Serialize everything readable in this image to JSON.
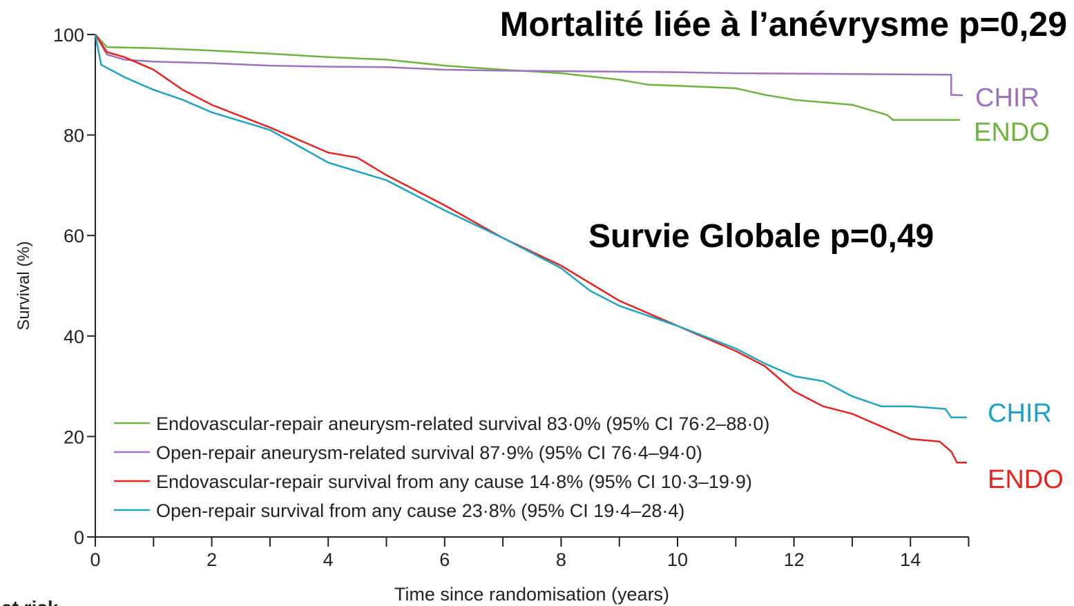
{
  "chart_data": {
    "type": "line",
    "title": "Mortalité liée à l’anévrysme p=0,29",
    "subtitle": "Survie Globale p=0,49",
    "x_label": "Time since randomisation (years)",
    "y_label": "Survival (%)",
    "footer": "at risk",
    "xlim": [
      0,
      15
    ],
    "xticks": [
      0,
      2,
      4,
      6,
      8,
      10,
      12,
      14
    ],
    "xminorticks": [
      1,
      3,
      5,
      7,
      9,
      11,
      13,
      15
    ],
    "ylim": [
      0,
      100
    ],
    "yticks": [
      0,
      20,
      40,
      60,
      80,
      100
    ],
    "grid": false,
    "legend": "lower left",
    "series": [
      {
        "name": "Endovascular-repair aneurysm-related survival 83·0% (95% CI 76·2–88·0)",
        "color": "#6db33f",
        "x": [
          0,
          0.2,
          1,
          2,
          3,
          4,
          5,
          6,
          7,
          8,
          9,
          9.5,
          10,
          11,
          11.5,
          12,
          13,
          13.6,
          13.7,
          14.85
        ],
        "values": [
          100,
          97.5,
          97.3,
          96.8,
          96.2,
          95.5,
          95,
          93.8,
          93,
          92.3,
          91,
          90,
          89.8,
          89.3,
          88,
          87,
          86,
          84,
          83,
          83
        ]
      },
      {
        "name": "Open-repair aneurysm-related survival 87·9% (95% CI 76·4–94·0)",
        "color": "#9b72c0",
        "x": [
          0,
          0.2,
          0.5,
          1,
          2,
          3,
          4,
          5,
          6,
          7,
          8,
          10,
          11,
          14.7,
          14.7,
          14.9
        ],
        "values": [
          100,
          96,
          95,
          94.6,
          94.3,
          93.8,
          93.6,
          93.5,
          93,
          92.8,
          92.7,
          92.5,
          92.3,
          92,
          88,
          87.9
        ]
      },
      {
        "name": "Endovascular-repair survival from any cause 14·8% (95% CI 10·3–19·9)",
        "color": "#e8231e",
        "x": [
          0,
          0.2,
          0.5,
          1,
          1.5,
          2,
          3,
          4,
          4.5,
          5,
          6,
          7,
          8,
          9,
          10,
          11,
          11.5,
          12,
          12.5,
          13,
          13.5,
          14,
          14.5,
          14.7,
          14.8,
          14.97
        ],
        "values": [
          100,
          96.5,
          95.5,
          93,
          89,
          86,
          81.5,
          76.5,
          75.5,
          72,
          66,
          59.5,
          54,
          47,
          42,
          37,
          34,
          29,
          26,
          24.5,
          22,
          19.5,
          19,
          17,
          14.8,
          14.8
        ]
      },
      {
        "name": "Open-repair survival from any cause 23·8% (95% CI 19·4–28·4)",
        "color": "#1aa3c4",
        "x": [
          0,
          0.1,
          0.5,
          1,
          1.5,
          2,
          3,
          4,
          5,
          6,
          7,
          8,
          8.5,
          9,
          10,
          11,
          11.5,
          12,
          12.5,
          13,
          13.5,
          14,
          14.6,
          14.7,
          14.97
        ],
        "values": [
          100,
          94,
          91.5,
          89,
          87,
          84.5,
          81,
          74.5,
          71,
          65,
          59.5,
          53.5,
          49,
          46,
          42,
          37.5,
          34.5,
          32,
          31,
          28,
          26,
          26,
          25.5,
          23.8,
          23.8
        ]
      }
    ],
    "annotations": [
      {
        "text": "CHIR",
        "color": "#9b72c0"
      },
      {
        "text": "ENDO",
        "color": "#6db33f"
      },
      {
        "text": "CHIR",
        "color": "#1aa3c4"
      },
      {
        "text": "ENDO",
        "color": "#e8231e"
      }
    ]
  }
}
